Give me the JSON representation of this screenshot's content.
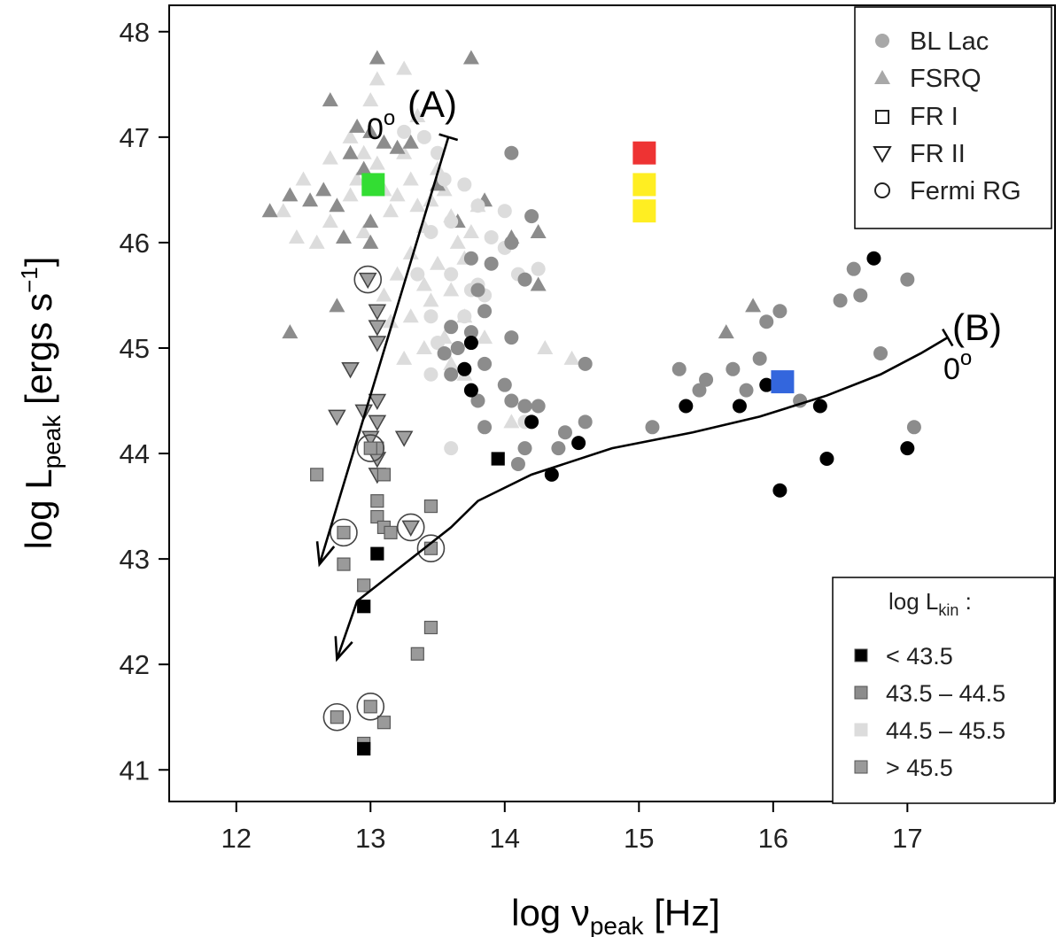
{
  "chart_data": {
    "type": "scatter",
    "xlabel_main": "log ν",
    "xlabel_sub": "peak",
    "xlabel_unit": " [Hz]",
    "ylabel_main": "log L",
    "ylabel_sub": "peak",
    "ylabel_unit": " [ergs s",
    "ylabel_sup": "−1",
    "ylabel_close": "]",
    "xlim": [
      11.5,
      18.1
    ],
    "ylim": [
      40.7,
      48.25
    ],
    "x_ticks": [
      12,
      13,
      14,
      15,
      16,
      17
    ],
    "y_ticks": [
      41,
      42,
      43,
      44,
      45,
      46,
      47,
      48
    ],
    "legend_symbols": {
      "position": "top-right",
      "items": [
        {
          "marker": "filled-circle",
          "label": "BL Lac"
        },
        {
          "marker": "filled-triangle",
          "label": "FSRQ"
        },
        {
          "marker": "open-square",
          "label": "FR I"
        },
        {
          "marker": "open-down-triangle",
          "label": "FR II"
        },
        {
          "marker": "open-circle",
          "label": "Fermi RG"
        }
      ]
    },
    "legend_lkin": {
      "position": "bottom-right",
      "title_main": "log L",
      "title_sub": "kin",
      "title_tail": " :",
      "items": [
        {
          "label": "< 43.5",
          "color": "#000000"
        },
        {
          "label": "43.5 – 44.5",
          "color": "#8c8c8c"
        },
        {
          "label": "44.5 – 45.5",
          "color": "#dcdcdc"
        },
        {
          "label": "> 45.5",
          "color": "#9a9a9a"
        }
      ]
    },
    "tracks": [
      {
        "name": "A",
        "label": "(A)",
        "angle_label": "0",
        "angle_sup": "o",
        "points": [
          [
            13.58,
            47.0
          ],
          [
            12.62,
            42.95
          ]
        ]
      },
      {
        "name": "B",
        "label": "(B)",
        "angle_label": "0",
        "angle_sup": "o",
        "points": [
          [
            17.3,
            45.1
          ],
          [
            17.1,
            44.95
          ],
          [
            16.8,
            44.75
          ],
          [
            16.4,
            44.55
          ],
          [
            15.9,
            44.35
          ],
          [
            15.4,
            44.2
          ],
          [
            14.8,
            44.05
          ],
          [
            14.2,
            43.8
          ],
          [
            13.8,
            43.55
          ],
          [
            13.6,
            43.3
          ],
          [
            13.4,
            43.1
          ],
          [
            13.2,
            42.9
          ],
          [
            12.9,
            42.6
          ],
          [
            12.75,
            42.05
          ]
        ]
      }
    ],
    "highlight_markers": [
      {
        "x": 13.02,
        "y": 46.55,
        "color": "#33dd33"
      },
      {
        "x": 15.04,
        "y": 46.85,
        "color": "#ee3333"
      },
      {
        "x": 15.04,
        "y": 46.55,
        "color": "#ffee22"
      },
      {
        "x": 15.04,
        "y": 46.3,
        "color": "#ffee22"
      },
      {
        "x": 16.07,
        "y": 44.68,
        "color": "#3366dd"
      }
    ],
    "series": [
      {
        "name": "FSRQ (light)",
        "marker": "triangle",
        "color": "#dcdcdc",
        "points": [
          [
            12.45,
            46.05
          ],
          [
            12.6,
            46.0
          ],
          [
            12.7,
            46.2
          ],
          [
            12.85,
            46.45
          ],
          [
            12.9,
            46.6
          ],
          [
            12.95,
            46.85
          ],
          [
            13.05,
            46.75
          ],
          [
            13.1,
            46.5
          ],
          [
            13.15,
            46.3
          ],
          [
            13.2,
            46.45
          ],
          [
            13.25,
            46.85
          ],
          [
            13.3,
            46.6
          ],
          [
            13.35,
            46.35
          ],
          [
            13.4,
            46.15
          ],
          [
            13.45,
            46.4
          ],
          [
            13.5,
            46.7
          ],
          [
            13.55,
            46.5
          ],
          [
            13.6,
            46.25
          ],
          [
            13.65,
            46.0
          ],
          [
            13.7,
            45.85
          ],
          [
            13.75,
            46.1
          ],
          [
            13.5,
            45.8
          ],
          [
            13.4,
            45.6
          ],
          [
            13.3,
            45.9
          ],
          [
            13.2,
            45.7
          ],
          [
            13.1,
            45.5
          ],
          [
            13.15,
            45.25
          ],
          [
            13.3,
            45.3
          ],
          [
            13.45,
            45.45
          ],
          [
            13.6,
            45.55
          ],
          [
            13.7,
            45.3
          ],
          [
            13.55,
            45.1
          ],
          [
            13.4,
            45.0
          ],
          [
            13.25,
            44.9
          ],
          [
            13.0,
            47.35
          ],
          [
            13.05,
            47.55
          ],
          [
            13.25,
            47.65
          ],
          [
            13.35,
            47.2
          ],
          [
            12.85,
            47.0
          ],
          [
            12.7,
            46.8
          ],
          [
            12.95,
            46.1
          ],
          [
            13.8,
            46.35
          ],
          [
            12.5,
            46.6
          ],
          [
            12.35,
            46.3
          ],
          [
            13.7,
            44.75
          ],
          [
            14.3,
            45.0
          ],
          [
            14.5,
            44.9
          ],
          [
            13.85,
            45.1
          ],
          [
            13.6,
            44.85
          ],
          [
            14.05,
            44.3
          ]
        ]
      },
      {
        "name": "FSRQ (dark)",
        "marker": "triangle",
        "color": "#8c8c8c",
        "points": [
          [
            12.25,
            46.3
          ],
          [
            12.4,
            46.45
          ],
          [
            12.55,
            46.4
          ],
          [
            12.65,
            46.5
          ],
          [
            12.75,
            46.35
          ],
          [
            12.8,
            46.05
          ],
          [
            12.85,
            46.85
          ],
          [
            12.9,
            47.1
          ],
          [
            12.95,
            46.7
          ],
          [
            13.0,
            47.05
          ],
          [
            13.05,
            47.75
          ],
          [
            13.1,
            46.95
          ],
          [
            13.2,
            46.9
          ],
          [
            12.7,
            47.35
          ],
          [
            13.0,
            46.2
          ],
          [
            13.0,
            46.0
          ],
          [
            13.5,
            46.55
          ],
          [
            13.65,
            46.2
          ],
          [
            13.85,
            46.4
          ],
          [
            14.05,
            46.05
          ],
          [
            14.25,
            46.1
          ],
          [
            14.25,
            45.6
          ],
          [
            13.75,
            47.75
          ],
          [
            13.3,
            46.95
          ],
          [
            12.4,
            45.15
          ],
          [
            15.65,
            45.15
          ],
          [
            15.85,
            45.4
          ],
          [
            12.75,
            45.4
          ]
        ]
      },
      {
        "name": "BL Lac (light)",
        "marker": "circle",
        "color": "#dcdcdc",
        "points": [
          [
            13.25,
            47.05
          ],
          [
            13.4,
            47.0
          ],
          [
            13.5,
            46.85
          ],
          [
            13.55,
            46.6
          ],
          [
            13.7,
            46.55
          ],
          [
            13.8,
            46.35
          ],
          [
            13.6,
            46.2
          ],
          [
            13.9,
            46.05
          ],
          [
            14.0,
            46.3
          ],
          [
            13.45,
            46.1
          ],
          [
            13.6,
            45.7
          ],
          [
            13.75,
            45.55
          ],
          [
            13.35,
            45.7
          ],
          [
            13.45,
            45.3
          ],
          [
            13.5,
            45.05
          ],
          [
            13.7,
            45.3
          ],
          [
            13.85,
            45.5
          ],
          [
            14.0,
            45.95
          ],
          [
            14.1,
            45.7
          ],
          [
            14.25,
            45.75
          ],
          [
            13.45,
            44.75
          ],
          [
            13.6,
            44.05
          ],
          [
            14.15,
            44.3
          ],
          [
            13.8,
            45.6
          ]
        ]
      },
      {
        "name": "BL Lac (dark)",
        "marker": "circle",
        "color": "#8c8c8c",
        "points": [
          [
            14.05,
            46.85
          ],
          [
            14.2,
            46.25
          ],
          [
            14.05,
            46.0
          ],
          [
            14.15,
            45.65
          ],
          [
            13.9,
            45.8
          ],
          [
            13.75,
            45.85
          ],
          [
            13.8,
            45.55
          ],
          [
            13.85,
            45.35
          ],
          [
            13.6,
            45.2
          ],
          [
            14.05,
            45.1
          ],
          [
            13.85,
            44.85
          ],
          [
            13.55,
            44.95
          ],
          [
            14.05,
            44.5
          ],
          [
            13.85,
            44.25
          ],
          [
            14.25,
            44.45
          ],
          [
            14.1,
            43.9
          ],
          [
            14.4,
            44.05
          ],
          [
            14.45,
            44.2
          ],
          [
            13.8,
            44.5
          ],
          [
            14.6,
            44.3
          ],
          [
            14.6,
            44.85
          ],
          [
            15.1,
            44.25
          ],
          [
            15.3,
            44.8
          ],
          [
            15.45,
            44.6
          ],
          [
            15.5,
            44.7
          ],
          [
            15.7,
            44.8
          ],
          [
            15.9,
            44.9
          ],
          [
            15.95,
            45.25
          ],
          [
            16.05,
            45.35
          ],
          [
            16.2,
            44.5
          ],
          [
            16.5,
            45.45
          ],
          [
            16.6,
            45.75
          ],
          [
            16.65,
            45.5
          ],
          [
            16.8,
            44.95
          ],
          [
            17.0,
            45.65
          ],
          [
            17.05,
            44.25
          ],
          [
            15.8,
            44.6
          ],
          [
            14.15,
            44.05
          ],
          [
            13.6,
            44.75
          ],
          [
            13.75,
            45.15
          ],
          [
            13.65,
            45.0
          ],
          [
            14.0,
            44.65
          ],
          [
            14.15,
            44.45
          ]
        ]
      },
      {
        "name": "BL Lac (black)",
        "marker": "circle",
        "color": "#000000",
        "points": [
          [
            13.75,
            45.05
          ],
          [
            13.7,
            44.8
          ],
          [
            13.75,
            44.6
          ],
          [
            14.2,
            44.3
          ],
          [
            14.55,
            44.1
          ],
          [
            14.35,
            43.8
          ],
          [
            15.35,
            44.45
          ],
          [
            15.75,
            44.45
          ],
          [
            15.95,
            44.65
          ],
          [
            16.05,
            43.65
          ],
          [
            16.35,
            44.45
          ],
          [
            16.4,
            43.95
          ],
          [
            16.75,
            45.85
          ],
          [
            17.0,
            44.05
          ]
        ]
      },
      {
        "name": "FR II",
        "marker": "down-triangle",
        "color": "#a0a0a0",
        "points": [
          [
            12.98,
            45.65
          ],
          [
            13.05,
            45.35
          ],
          [
            13.05,
            45.2
          ],
          [
            13.05,
            45.05
          ],
          [
            12.85,
            44.8
          ],
          [
            12.75,
            44.35
          ],
          [
            12.95,
            44.4
          ],
          [
            13.05,
            44.5
          ],
          [
            13.05,
            44.3
          ],
          [
            13.0,
            44.15
          ],
          [
            13.05,
            43.95
          ],
          [
            13.05,
            43.8
          ],
          [
            13.25,
            44.15
          ],
          [
            13.3,
            43.3
          ]
        ]
      },
      {
        "name": "FR I (grey)",
        "marker": "square",
        "color": "#9a9a9a",
        "points": [
          [
            12.6,
            43.8
          ],
          [
            12.8,
            43.25
          ],
          [
            12.8,
            42.95
          ],
          [
            12.95,
            42.75
          ],
          [
            13.05,
            43.55
          ],
          [
            13.05,
            43.4
          ],
          [
            13.1,
            43.3
          ],
          [
            13.15,
            43.25
          ],
          [
            13.1,
            43.8
          ],
          [
            13.05,
            44.05
          ],
          [
            13.45,
            43.5
          ],
          [
            13.45,
            43.1
          ],
          [
            13.45,
            42.35
          ],
          [
            13.35,
            42.1
          ],
          [
            13.0,
            41.6
          ],
          [
            12.75,
            41.5
          ],
          [
            13.1,
            41.45
          ],
          [
            12.95,
            41.25
          ],
          [
            13.0,
            44.05
          ]
        ]
      },
      {
        "name": "FR I (black)",
        "marker": "square",
        "color": "#000000",
        "points": [
          [
            13.05,
            43.05
          ],
          [
            12.95,
            42.55
          ],
          [
            13.95,
            43.95
          ],
          [
            12.95,
            41.2
          ]
        ]
      }
    ],
    "fermi_rg_rings": [
      [
        12.98,
        45.65
      ],
      [
        12.8,
        43.25
      ],
      [
        13.3,
        43.3
      ],
      [
        13.45,
        43.1
      ],
      [
        12.75,
        41.5
      ],
      [
        13.0,
        41.6
      ],
      [
        13.0,
        44.05
      ]
    ]
  }
}
